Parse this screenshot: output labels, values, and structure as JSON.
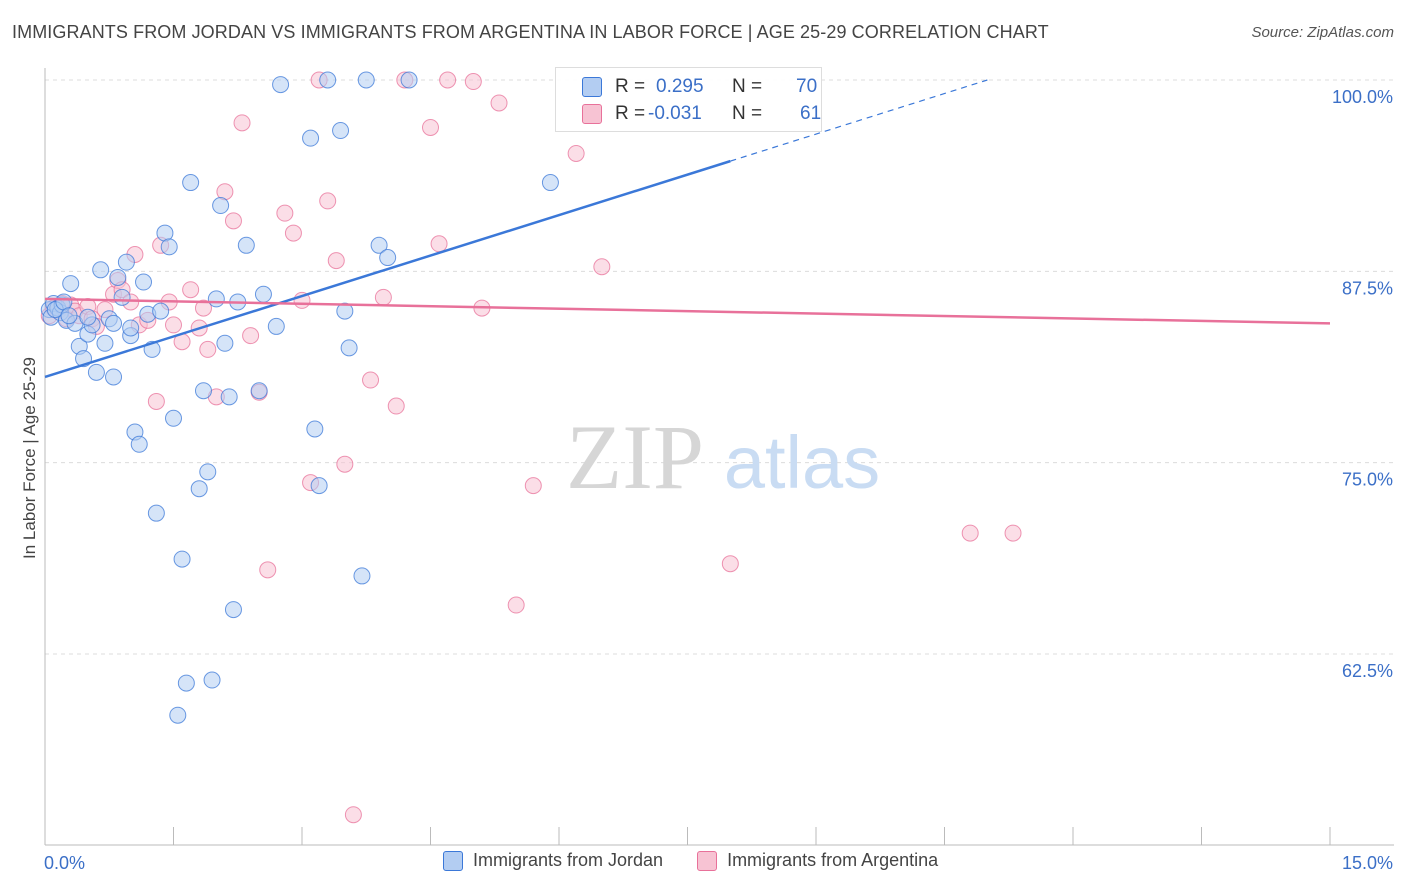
{
  "title": "IMMIGRANTS FROM JORDAN VS IMMIGRANTS FROM ARGENTINA IN LABOR FORCE | AGE 25-29 CORRELATION CHART",
  "source": "Source: ZipAtlas.com",
  "watermark": {
    "zip": "ZIP",
    "atlas": "atlas"
  },
  "colors": {
    "blue": "#3b78d8",
    "blue_fill": "#b3cdf2",
    "pink": "#e8719a",
    "pink_fill": "#f7c3d3",
    "tick_label": "#3b6fc7"
  },
  "stats": {
    "r_label": "R =",
    "n_label": "N =",
    "rows": [
      {
        "r": "0.295",
        "n": "70"
      },
      {
        "r": "-0.031",
        "n": "61"
      }
    ]
  },
  "chart_data": {
    "type": "scatter",
    "title": "IMMIGRANTS FROM JORDAN VS IMMIGRANTS FROM ARGENTINA IN LABOR FORCE | AGE 25-29 CORRELATION CHART",
    "xlabel": "",
    "ylabel": "In Labor Force | Age 25-29",
    "xlim": [
      0,
      15
    ],
    "ylim": [
      50,
      100.5
    ],
    "x_tick_labels": [
      "0.0%",
      "15.0%"
    ],
    "y_ticks": [
      62.5,
      75.0,
      87.5,
      100.0
    ],
    "y_tick_labels": [
      "62.5%",
      "75.0%",
      "87.5%",
      "100.0%"
    ],
    "legend": [
      "Immigrants from Jordan",
      "Immigrants from Argentina"
    ],
    "series": [
      {
        "name": "Immigrants from Jordan",
        "trend": {
          "x": [
            0.0,
            8.0
          ],
          "y": [
            80.6,
            94.7
          ],
          "dashed_to": [
            11.0,
            100.0
          ]
        },
        "points": [
          [
            0.05,
            85.0
          ],
          [
            0.07,
            84.5
          ],
          [
            0.1,
            85.4
          ],
          [
            0.15,
            85.1
          ],
          [
            0.18,
            84.8
          ],
          [
            0.2,
            85.3
          ],
          [
            0.25,
            84.3
          ],
          [
            0.3,
            86.7
          ],
          [
            0.35,
            84.1
          ],
          [
            0.4,
            82.6
          ],
          [
            0.45,
            81.8
          ],
          [
            0.5,
            83.4
          ],
          [
            0.55,
            84.0
          ],
          [
            0.6,
            80.9
          ],
          [
            0.65,
            87.6
          ],
          [
            0.7,
            82.8
          ],
          [
            0.75,
            84.4
          ],
          [
            0.8,
            80.6
          ],
          [
            0.85,
            87.1
          ],
          [
            0.9,
            85.8
          ],
          [
            0.95,
            88.1
          ],
          [
            1.0,
            83.3
          ],
          [
            1.05,
            77.0
          ],
          [
            1.1,
            76.2
          ],
          [
            1.15,
            86.8
          ],
          [
            1.2,
            84.7
          ],
          [
            1.25,
            82.4
          ],
          [
            1.3,
            71.7
          ],
          [
            1.35,
            84.9
          ],
          [
            1.4,
            90.0
          ],
          [
            1.45,
            89.1
          ],
          [
            1.5,
            77.9
          ],
          [
            1.55,
            58.5
          ],
          [
            1.6,
            68.7
          ],
          [
            1.65,
            60.6
          ],
          [
            1.7,
            93.3
          ],
          [
            1.8,
            73.3
          ],
          [
            1.85,
            79.7
          ],
          [
            1.9,
            74.4
          ],
          [
            1.95,
            60.8
          ],
          [
            2.0,
            85.7
          ],
          [
            2.05,
            91.8
          ],
          [
            2.1,
            82.8
          ],
          [
            2.15,
            79.3
          ],
          [
            2.2,
            65.4
          ],
          [
            2.25,
            85.5
          ],
          [
            2.35,
            89.2
          ],
          [
            2.5,
            79.7
          ],
          [
            2.55,
            86.0
          ],
          [
            2.7,
            83.9
          ],
          [
            2.75,
            99.7
          ],
          [
            3.1,
            96.2
          ],
          [
            3.15,
            77.2
          ],
          [
            3.2,
            73.5
          ],
          [
            3.3,
            100.0
          ],
          [
            3.45,
            96.7
          ],
          [
            3.5,
            84.9
          ],
          [
            3.55,
            82.5
          ],
          [
            3.7,
            67.6
          ],
          [
            3.75,
            100.0
          ],
          [
            3.9,
            89.2
          ],
          [
            4.0,
            88.4
          ],
          [
            4.25,
            100.0
          ],
          [
            5.9,
            93.3
          ],
          [
            0.12,
            85.0
          ],
          [
            0.22,
            85.5
          ],
          [
            0.28,
            84.6
          ],
          [
            0.5,
            84.5
          ],
          [
            1.0,
            83.8
          ],
          [
            0.8,
            84.1
          ]
        ]
      },
      {
        "name": "Immigrants from Argentina",
        "trend": {
          "x": [
            0.0,
            15.0
          ],
          "y": [
            85.7,
            84.1
          ]
        },
        "points": [
          [
            0.05,
            84.6
          ],
          [
            0.1,
            85.1
          ],
          [
            0.15,
            84.9
          ],
          [
            0.2,
            85.4
          ],
          [
            0.25,
            84.4
          ],
          [
            0.3,
            85.3
          ],
          [
            0.35,
            84.9
          ],
          [
            0.4,
            84.6
          ],
          [
            0.5,
            85.2
          ],
          [
            0.55,
            84.4
          ],
          [
            0.6,
            83.9
          ],
          [
            0.7,
            85.0
          ],
          [
            0.8,
            86.0
          ],
          [
            0.85,
            86.9
          ],
          [
            0.9,
            86.3
          ],
          [
            1.0,
            85.5
          ],
          [
            1.05,
            88.6
          ],
          [
            1.1,
            84.0
          ],
          [
            1.2,
            84.3
          ],
          [
            1.3,
            79.0
          ],
          [
            1.35,
            89.2
          ],
          [
            1.45,
            85.5
          ],
          [
            1.5,
            84.0
          ],
          [
            1.6,
            82.9
          ],
          [
            1.7,
            86.3
          ],
          [
            1.8,
            83.8
          ],
          [
            1.85,
            85.1
          ],
          [
            1.9,
            82.4
          ],
          [
            2.0,
            79.3
          ],
          [
            2.1,
            92.7
          ],
          [
            2.2,
            90.8
          ],
          [
            2.3,
            97.2
          ],
          [
            2.4,
            83.3
          ],
          [
            2.5,
            79.6
          ],
          [
            2.6,
            68.0
          ],
          [
            2.8,
            91.3
          ],
          [
            2.9,
            90.0
          ],
          [
            3.0,
            85.6
          ],
          [
            3.1,
            73.7
          ],
          [
            3.2,
            100.0
          ],
          [
            3.3,
            92.1
          ],
          [
            3.4,
            88.2
          ],
          [
            3.5,
            74.9
          ],
          [
            3.6,
            52.0
          ],
          [
            3.8,
            80.4
          ],
          [
            3.95,
            85.8
          ],
          [
            4.1,
            78.7
          ],
          [
            4.2,
            100.0
          ],
          [
            4.5,
            96.9
          ],
          [
            4.6,
            89.3
          ],
          [
            4.7,
            100.0
          ],
          [
            5.0,
            99.9
          ],
          [
            5.1,
            85.1
          ],
          [
            5.3,
            98.5
          ],
          [
            5.5,
            65.7
          ],
          [
            5.7,
            73.5
          ],
          [
            6.2,
            95.2
          ],
          [
            6.5,
            87.8
          ],
          [
            8.0,
            68.4
          ],
          [
            10.8,
            70.4
          ],
          [
            11.3,
            70.4
          ]
        ]
      }
    ]
  }
}
